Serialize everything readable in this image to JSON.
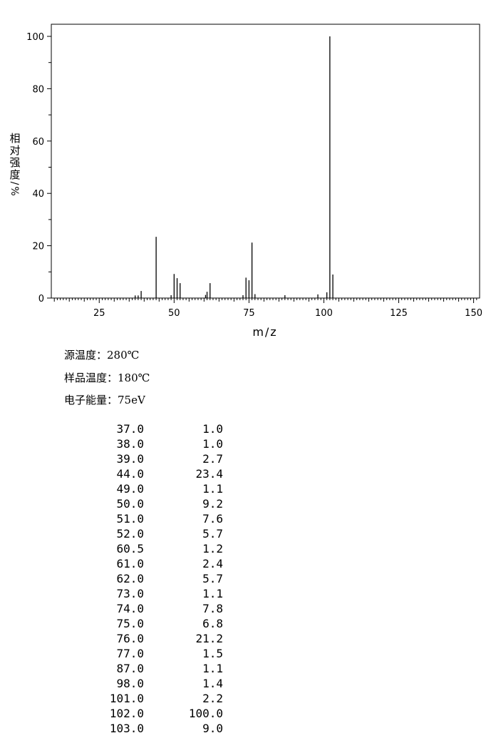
{
  "chart_data": {
    "type": "bar",
    "xlabel": "m/z",
    "ylabel": "相对强度/%",
    "xlim": [
      9,
      152
    ],
    "ylim": [
      0,
      105
    ],
    "xticks": [
      25,
      50,
      75,
      100,
      125,
      150
    ],
    "yticks": [
      0,
      20,
      40,
      60,
      80,
      100
    ],
    "grid": false,
    "points": [
      {
        "x": 37.0,
        "y": 1.0
      },
      {
        "x": 38.0,
        "y": 1.0
      },
      {
        "x": 39.0,
        "y": 2.7
      },
      {
        "x": 44.0,
        "y": 23.4
      },
      {
        "x": 49.0,
        "y": 1.1
      },
      {
        "x": 50.0,
        "y": 9.2
      },
      {
        "x": 51.0,
        "y": 7.6
      },
      {
        "x": 52.0,
        "y": 5.7
      },
      {
        "x": 60.5,
        "y": 1.2
      },
      {
        "x": 61.0,
        "y": 2.4
      },
      {
        "x": 62.0,
        "y": 5.7
      },
      {
        "x": 73.0,
        "y": 1.1
      },
      {
        "x": 74.0,
        "y": 7.8
      },
      {
        "x": 75.0,
        "y": 6.8
      },
      {
        "x": 76.0,
        "y": 21.2
      },
      {
        "x": 77.0,
        "y": 1.5
      },
      {
        "x": 87.0,
        "y": 1.1
      },
      {
        "x": 98.0,
        "y": 1.4
      },
      {
        "x": 101.0,
        "y": 2.2
      },
      {
        "x": 102.0,
        "y": 100.0
      },
      {
        "x": 103.0,
        "y": 9.0
      }
    ]
  },
  "conditions": {
    "source_temp": "源温度：280℃",
    "sample_temp": "样品温度：180℃",
    "electron_energy": "电子能量：75eV"
  },
  "peak_table": [
    {
      "mz": "37.0",
      "intensity": "1.0"
    },
    {
      "mz": "38.0",
      "intensity": "1.0"
    },
    {
      "mz": "39.0",
      "intensity": "2.7"
    },
    {
      "mz": "44.0",
      "intensity": "23.4"
    },
    {
      "mz": "49.0",
      "intensity": "1.1"
    },
    {
      "mz": "50.0",
      "intensity": "9.2"
    },
    {
      "mz": "51.0",
      "intensity": "7.6"
    },
    {
      "mz": "52.0",
      "intensity": "5.7"
    },
    {
      "mz": "60.5",
      "intensity": "1.2"
    },
    {
      "mz": "61.0",
      "intensity": "2.4"
    },
    {
      "mz": "62.0",
      "intensity": "5.7"
    },
    {
      "mz": "73.0",
      "intensity": "1.1"
    },
    {
      "mz": "74.0",
      "intensity": "7.8"
    },
    {
      "mz": "75.0",
      "intensity": "6.8"
    },
    {
      "mz": "76.0",
      "intensity": "21.2"
    },
    {
      "mz": "77.0",
      "intensity": "1.5"
    },
    {
      "mz": "87.0",
      "intensity": "1.1"
    },
    {
      "mz": "98.0",
      "intensity": "1.4"
    },
    {
      "mz": "101.0",
      "intensity": "2.2"
    },
    {
      "mz": "102.0",
      "intensity": "100.0"
    },
    {
      "mz": "103.0",
      "intensity": "9.0"
    }
  ]
}
